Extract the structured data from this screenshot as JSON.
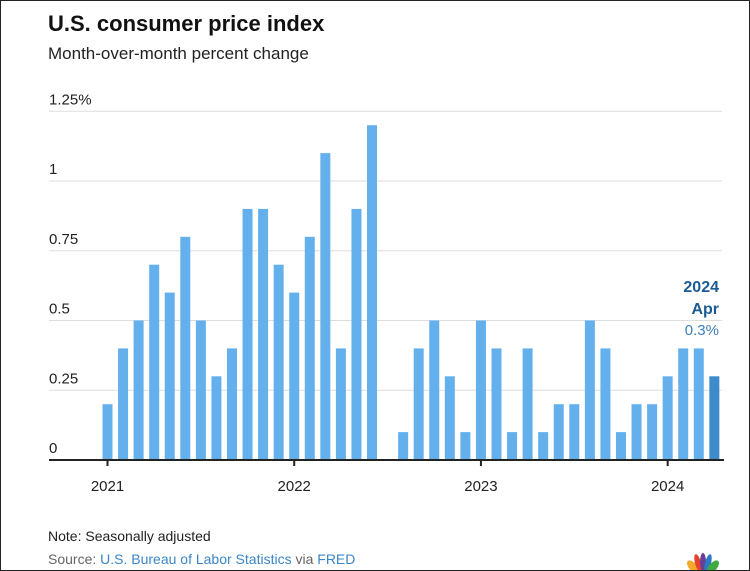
{
  "title": "U.S. consumer price index",
  "subtitle": "Month-over-month percent change",
  "note": "Note: Seasonally adjusted",
  "source": {
    "prefix": "Source: ",
    "link1": "U.S. Bureau of Labor Statistics",
    "mid": " via ",
    "link2": "FRED"
  },
  "colors": {
    "bar": "#64b0ec",
    "highlight": "#3e8bcb",
    "label": "#1b5a94"
  },
  "chart_data": {
    "type": "bar",
    "ylim": [
      0,
      1.25
    ],
    "yticks": [
      "0",
      "0.25",
      "0.5",
      "0.75",
      "1",
      "1.25%"
    ],
    "ytick_values": [
      0,
      0.25,
      0.5,
      0.75,
      1,
      1.25
    ],
    "xtick_labels": [
      "2021",
      "2022",
      "2023",
      "2024"
    ],
    "grid": true,
    "categories": [
      "2021-01",
      "2021-02",
      "2021-03",
      "2021-04",
      "2021-05",
      "2021-06",
      "2021-07",
      "2021-08",
      "2021-09",
      "2021-10",
      "2021-11",
      "2021-12",
      "2022-01",
      "2022-02",
      "2022-03",
      "2022-04",
      "2022-05",
      "2022-06",
      "2022-07",
      "2022-08",
      "2022-09",
      "2022-10",
      "2022-11",
      "2022-12",
      "2023-01",
      "2023-02",
      "2023-03",
      "2023-04",
      "2023-05",
      "2023-06",
      "2023-07",
      "2023-08",
      "2023-09",
      "2023-10",
      "2023-11",
      "2023-12",
      "2024-01",
      "2024-02",
      "2024-03",
      "2024-04"
    ],
    "values": [
      0.2,
      0.4,
      0.5,
      0.7,
      0.6,
      0.8,
      0.5,
      0.3,
      0.4,
      0.9,
      0.9,
      0.7,
      0.6,
      0.8,
      1.1,
      0.4,
      0.9,
      1.2,
      0.0,
      0.1,
      0.4,
      0.5,
      0.3,
      0.1,
      0.5,
      0.4,
      0.1,
      0.4,
      0.1,
      0.2,
      0.2,
      0.5,
      0.4,
      0.1,
      0.2,
      0.2,
      0.3,
      0.4,
      0.4,
      0.3
    ],
    "annotation": {
      "year": "2024",
      "month": "Apr",
      "value": "0.3%"
    }
  }
}
